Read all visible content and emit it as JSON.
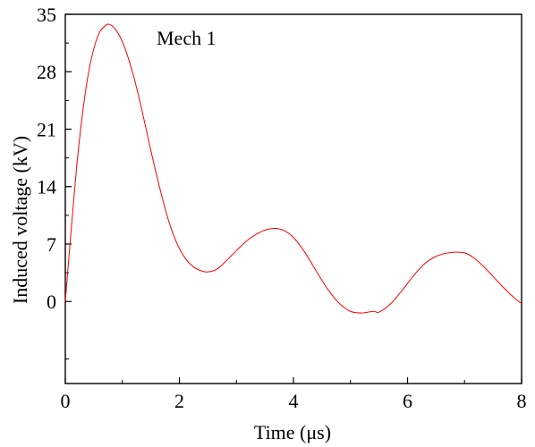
{
  "chart_data": {
    "type": "line",
    "xlabel": "Time  (μs)",
    "ylabel": "Induced voltage  (kV)",
    "annotation": "Mech 1",
    "xlim": [
      0,
      8
    ],
    "ylim": [
      -10,
      35
    ],
    "x_ticks": [
      0,
      2,
      4,
      6,
      8
    ],
    "y_ticks": [
      0,
      7,
      14,
      21,
      28,
      35
    ],
    "x_tick_labels": [
      "0",
      "2",
      "4",
      "6",
      "8"
    ],
    "y_tick_labels": [
      "0",
      "7",
      "14",
      "21",
      "28",
      "35"
    ],
    "grid": false,
    "series": [
      {
        "color": "#ff0000",
        "points": [
          [
            0.0,
            0.0
          ],
          [
            0.1,
            8.5
          ],
          [
            0.2,
            16.5
          ],
          [
            0.3,
            22.8
          ],
          [
            0.4,
            27.6
          ],
          [
            0.5,
            30.8
          ],
          [
            0.6,
            32.8
          ],
          [
            0.7,
            33.6
          ],
          [
            0.76,
            33.8
          ],
          [
            0.85,
            33.4
          ],
          [
            0.95,
            32.4
          ],
          [
            1.05,
            30.8
          ],
          [
            1.2,
            27.4
          ],
          [
            1.35,
            23.1
          ],
          [
            1.5,
            18.4
          ],
          [
            1.65,
            14.0
          ],
          [
            1.8,
            10.1
          ],
          [
            1.95,
            7.2
          ],
          [
            2.1,
            5.3
          ],
          [
            2.25,
            4.2
          ],
          [
            2.4,
            3.7
          ],
          [
            2.5,
            3.6
          ],
          [
            2.65,
            3.9
          ],
          [
            2.8,
            4.8
          ],
          [
            3.0,
            6.2
          ],
          [
            3.2,
            7.5
          ],
          [
            3.4,
            8.4
          ],
          [
            3.55,
            8.8
          ],
          [
            3.7,
            8.9
          ],
          [
            3.85,
            8.6
          ],
          [
            4.0,
            7.8
          ],
          [
            4.2,
            6.0
          ],
          [
            4.4,
            3.7
          ],
          [
            4.6,
            1.5
          ],
          [
            4.8,
            -0.2
          ],
          [
            5.0,
            -1.2
          ],
          [
            5.2,
            -1.4
          ],
          [
            5.4,
            -1.2
          ],
          [
            5.5,
            -1.3
          ],
          [
            5.7,
            -0.3
          ],
          [
            5.9,
            1.3
          ],
          [
            6.1,
            3.1
          ],
          [
            6.3,
            4.6
          ],
          [
            6.5,
            5.5
          ],
          [
            6.7,
            5.9
          ],
          [
            6.9,
            6.0
          ],
          [
            7.05,
            5.8
          ],
          [
            7.2,
            5.1
          ],
          [
            7.4,
            3.8
          ],
          [
            7.6,
            2.3
          ],
          [
            7.8,
            0.9
          ],
          [
            7.95,
            0.0
          ],
          [
            8.0,
            -0.2
          ]
        ]
      }
    ]
  }
}
